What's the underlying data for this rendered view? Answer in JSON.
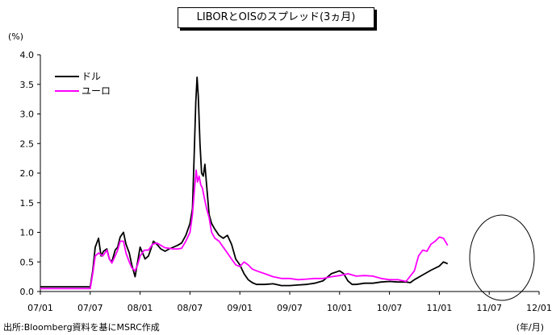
{
  "chart_data": {
    "type": "line",
    "title": "LIBORとOISのスプレッド(3ヵ月)",
    "y_unit": "(%)",
    "x_unit": "(年/月)",
    "source": "出所:Bloomberg資料を基にMSRC作成",
    "ylim": [
      0.0,
      4.0
    ],
    "yticks": [
      "0.0",
      "0.5",
      "1.0",
      "1.5",
      "2.0",
      "2.5",
      "3.0",
      "3.5",
      "4.0"
    ],
    "xticks": [
      "07/01",
      "07/07",
      "08/01",
      "08/07",
      "09/01",
      "09/07",
      "10/01",
      "10/07",
      "11/01",
      "11/07",
      "12/01"
    ],
    "legend_position": "top-left",
    "grid": false,
    "series": [
      {
        "name": "ドル",
        "color": "#000000",
        "points": [
          [
            0.0,
            0.08
          ],
          [
            6.0,
            0.08
          ],
          [
            6.3,
            0.35
          ],
          [
            6.6,
            0.75
          ],
          [
            7.0,
            0.9
          ],
          [
            7.3,
            0.6
          ],
          [
            7.6,
            0.68
          ],
          [
            8.0,
            0.72
          ],
          [
            8.3,
            0.55
          ],
          [
            8.6,
            0.5
          ],
          [
            9.0,
            0.7
          ],
          [
            9.3,
            0.75
          ],
          [
            9.6,
            0.92
          ],
          [
            10.0,
            1.0
          ],
          [
            10.3,
            0.8
          ],
          [
            10.7,
            0.65
          ],
          [
            11.0,
            0.45
          ],
          [
            11.4,
            0.25
          ],
          [
            11.7,
            0.5
          ],
          [
            12.0,
            0.75
          ],
          [
            12.3,
            0.65
          ],
          [
            12.6,
            0.55
          ],
          [
            13.0,
            0.6
          ],
          [
            13.3,
            0.72
          ],
          [
            13.6,
            0.85
          ],
          [
            14.0,
            0.8
          ],
          [
            14.5,
            0.72
          ],
          [
            15.0,
            0.68
          ],
          [
            15.5,
            0.72
          ],
          [
            16.0,
            0.75
          ],
          [
            16.5,
            0.78
          ],
          [
            17.0,
            0.82
          ],
          [
            17.5,
            0.95
          ],
          [
            18.0,
            1.15
          ],
          [
            18.3,
            1.4
          ],
          [
            18.5,
            2.3
          ],
          [
            18.7,
            3.2
          ],
          [
            18.85,
            3.62
          ],
          [
            19.0,
            3.3
          ],
          [
            19.2,
            2.5
          ],
          [
            19.4,
            2.0
          ],
          [
            19.6,
            1.95
          ],
          [
            19.8,
            2.15
          ],
          [
            20.0,
            1.8
          ],
          [
            20.3,
            1.3
          ],
          [
            20.6,
            1.15
          ],
          [
            21.0,
            1.05
          ],
          [
            21.5,
            0.95
          ],
          [
            22.0,
            0.9
          ],
          [
            22.5,
            0.95
          ],
          [
            23.0,
            0.8
          ],
          [
            23.5,
            0.55
          ],
          [
            24.0,
            0.45
          ],
          [
            24.5,
            0.3
          ],
          [
            25.0,
            0.2
          ],
          [
            25.5,
            0.15
          ],
          [
            26.0,
            0.12
          ],
          [
            27.0,
            0.12
          ],
          [
            28.0,
            0.13
          ],
          [
            29.0,
            0.1
          ],
          [
            30.0,
            0.1
          ],
          [
            31.0,
            0.11
          ],
          [
            32.0,
            0.12
          ],
          [
            33.0,
            0.14
          ],
          [
            34.0,
            0.18
          ],
          [
            35.0,
            0.3
          ],
          [
            36.0,
            0.35
          ],
          [
            36.5,
            0.3
          ],
          [
            37.0,
            0.18
          ],
          [
            37.5,
            0.12
          ],
          [
            38.0,
            0.12
          ],
          [
            39.0,
            0.14
          ],
          [
            40.0,
            0.14
          ],
          [
            41.0,
            0.16
          ],
          [
            42.0,
            0.17
          ],
          [
            43.0,
            0.16
          ],
          [
            44.0,
            0.16
          ],
          [
            44.5,
            0.15
          ],
          [
            45.0,
            0.2
          ],
          [
            46.0,
            0.28
          ],
          [
            47.0,
            0.36
          ],
          [
            48.0,
            0.43
          ],
          [
            48.5,
            0.5
          ],
          [
            49.0,
            0.47
          ]
        ]
      },
      {
        "name": "ユーロ",
        "color": "#ff00ff",
        "points": [
          [
            0.0,
            0.05
          ],
          [
            6.0,
            0.05
          ],
          [
            6.3,
            0.3
          ],
          [
            6.6,
            0.6
          ],
          [
            7.0,
            0.65
          ],
          [
            7.5,
            0.6
          ],
          [
            8.0,
            0.7
          ],
          [
            8.3,
            0.55
          ],
          [
            8.6,
            0.48
          ],
          [
            9.0,
            0.6
          ],
          [
            9.3,
            0.7
          ],
          [
            9.6,
            0.85
          ],
          [
            10.0,
            0.85
          ],
          [
            10.3,
            0.65
          ],
          [
            10.7,
            0.5
          ],
          [
            11.0,
            0.4
          ],
          [
            11.4,
            0.35
          ],
          [
            11.7,
            0.45
          ],
          [
            12.0,
            0.6
          ],
          [
            12.5,
            0.7
          ],
          [
            13.0,
            0.7
          ],
          [
            13.5,
            0.8
          ],
          [
            14.0,
            0.82
          ],
          [
            14.5,
            0.78
          ],
          [
            15.0,
            0.74
          ],
          [
            15.5,
            0.73
          ],
          [
            16.0,
            0.72
          ],
          [
            16.5,
            0.72
          ],
          [
            17.0,
            0.73
          ],
          [
            17.5,
            0.85
          ],
          [
            18.0,
            1.0
          ],
          [
            18.3,
            1.3
          ],
          [
            18.55,
            1.75
          ],
          [
            18.75,
            2.05
          ],
          [
            18.9,
            1.85
          ],
          [
            19.1,
            1.95
          ],
          [
            19.3,
            1.8
          ],
          [
            19.5,
            1.75
          ],
          [
            19.7,
            1.6
          ],
          [
            20.0,
            1.4
          ],
          [
            20.3,
            1.25
          ],
          [
            20.6,
            1.0
          ],
          [
            21.0,
            0.9
          ],
          [
            21.5,
            0.85
          ],
          [
            22.0,
            0.75
          ],
          [
            22.5,
            0.65
          ],
          [
            23.0,
            0.55
          ],
          [
            23.5,
            0.45
          ],
          [
            24.0,
            0.42
          ],
          [
            24.5,
            0.5
          ],
          [
            25.0,
            0.45
          ],
          [
            25.5,
            0.38
          ],
          [
            26.0,
            0.35
          ],
          [
            27.0,
            0.3
          ],
          [
            28.0,
            0.25
          ],
          [
            29.0,
            0.22
          ],
          [
            30.0,
            0.22
          ],
          [
            31.0,
            0.2
          ],
          [
            32.0,
            0.21
          ],
          [
            33.0,
            0.22
          ],
          [
            34.0,
            0.22
          ],
          [
            35.0,
            0.25
          ],
          [
            36.0,
            0.27
          ],
          [
            37.0,
            0.3
          ],
          [
            38.0,
            0.26
          ],
          [
            39.0,
            0.27
          ],
          [
            40.0,
            0.26
          ],
          [
            41.0,
            0.22
          ],
          [
            42.0,
            0.2
          ],
          [
            43.0,
            0.2
          ],
          [
            44.0,
            0.17
          ],
          [
            45.0,
            0.35
          ],
          [
            45.5,
            0.6
          ],
          [
            46.0,
            0.7
          ],
          [
            46.5,
            0.68
          ],
          [
            47.0,
            0.8
          ],
          [
            47.5,
            0.85
          ],
          [
            48.0,
            0.92
          ],
          [
            48.5,
            0.9
          ],
          [
            49.0,
            0.78
          ]
        ]
      }
    ]
  },
  "annotation": "circle-highlight"
}
